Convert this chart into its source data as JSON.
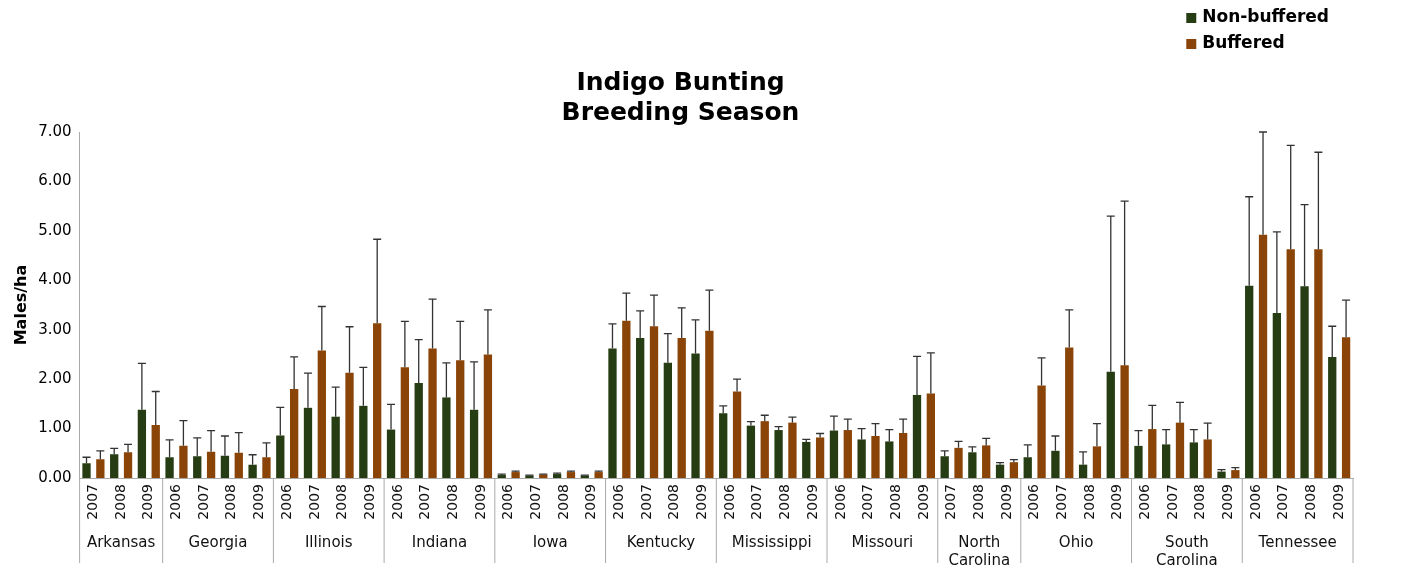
{
  "chart_data": {
    "type": "bar",
    "title": "Indigo Bunting Breeding Season",
    "ylabel": "Males/ha",
    "categories": [
      "2007",
      "2008",
      "2009",
      "2006",
      "2007",
      "2008",
      "2009",
      "2006",
      "2007",
      "2008",
      "2009",
      "2006",
      "2007",
      "2008",
      "2009",
      "2006",
      "2007",
      "2008",
      "2009",
      "2006",
      "2007",
      "2008",
      "2009",
      "2006",
      "2007",
      "2008",
      "2009",
      "2006",
      "2007",
      "2008",
      "2009",
      "2007",
      "2008",
      "2009",
      "2006",
      "2007",
      "2008",
      "2009",
      "2006",
      "2007",
      "2008",
      "2009",
      "2006",
      "2007",
      "2008",
      "2009"
    ],
    "annotations": [
      "Arkansas",
      "Georgia",
      "Illinois",
      "Indiana",
      "Iowa",
      "Kentucky",
      "Mississippi",
      "Missouri",
      "North Carolina",
      "Ohio",
      "South Carolina",
      "Tennessee"
    ],
    "series": [
      {
        "name": "Non-buffered",
        "color": "#263d13",
        "values": [
          0.3,
          0.48,
          1.38,
          0.42,
          0.44,
          0.45,
          0.27,
          0.86,
          1.42,
          1.24,
          1.46,
          0.98,
          1.92,
          1.63,
          1.38,
          0.06,
          0.05,
          0.08,
          0.05,
          2.62,
          2.83,
          2.33,
          2.52,
          1.31,
          1.06,
          0.97,
          0.73,
          0.96,
          0.78,
          0.74,
          1.68,
          0.44,
          0.52,
          0.27,
          0.42,
          0.55,
          0.27,
          2.15,
          0.65,
          0.68,
          0.72,
          0.13,
          3.89,
          3.34,
          3.88,
          2.45
        ],
        "errors": [
          [
            0.3,
            0.42
          ],
          [
            0.48,
            0.6
          ],
          [
            1.38,
            2.32
          ],
          [
            0.42,
            0.77
          ],
          [
            0.44,
            0.81
          ],
          [
            0.45,
            0.85
          ],
          [
            0.27,
            0.47
          ],
          [
            0.86,
            1.43
          ],
          [
            1.42,
            2.12
          ],
          [
            1.24,
            1.84
          ],
          [
            1.46,
            2.24
          ],
          [
            0.98,
            1.49
          ],
          [
            1.92,
            2.8
          ],
          [
            1.63,
            2.33
          ],
          [
            1.38,
            2.35
          ],
          [
            0.06,
            0.08
          ],
          [
            0.05,
            0.06
          ],
          [
            0.08,
            0.1
          ],
          [
            0.05,
            0.06
          ],
          [
            2.62,
            3.12
          ],
          [
            2.83,
            3.38
          ],
          [
            2.33,
            2.92
          ],
          [
            2.52,
            3.2
          ],
          [
            1.31,
            1.46
          ],
          [
            1.06,
            1.14
          ],
          [
            0.97,
            1.04
          ],
          [
            0.73,
            0.78
          ],
          [
            0.96,
            1.25
          ],
          [
            0.78,
            1.0
          ],
          [
            0.74,
            0.98
          ],
          [
            1.68,
            2.46
          ],
          [
            0.44,
            0.55
          ],
          [
            0.52,
            0.63
          ],
          [
            0.27,
            0.31
          ],
          [
            0.42,
            0.67
          ],
          [
            0.55,
            0.85
          ],
          [
            0.27,
            0.53
          ],
          [
            2.15,
            5.3
          ],
          [
            0.65,
            0.96
          ],
          [
            0.68,
            0.98
          ],
          [
            0.72,
            0.98
          ],
          [
            0.13,
            0.17
          ],
          [
            3.89,
            5.69
          ],
          [
            3.34,
            4.98
          ],
          [
            3.88,
            5.53
          ],
          [
            2.45,
            3.07
          ]
        ]
      },
      {
        "name": "Buffered",
        "color": "#8b4407",
        "values": [
          0.38,
          0.52,
          1.07,
          0.65,
          0.53,
          0.51,
          0.42,
          1.8,
          2.58,
          2.13,
          3.13,
          2.24,
          2.62,
          2.38,
          2.5,
          0.12,
          0.07,
          0.12,
          0.12,
          3.18,
          3.07,
          2.83,
          2.98,
          1.75,
          1.15,
          1.12,
          0.82,
          0.97,
          0.85,
          0.91,
          1.71,
          0.61,
          0.66,
          0.32,
          1.87,
          2.64,
          0.64,
          2.28,
          0.99,
          1.12,
          0.78,
          0.16,
          4.92,
          4.63,
          4.63,
          2.85
        ],
        "errors": [
          [
            0.38,
            0.55
          ],
          [
            0.52,
            0.68
          ],
          [
            1.07,
            1.75
          ],
          [
            0.65,
            1.16
          ],
          [
            0.53,
            0.96
          ],
          [
            0.51,
            0.92
          ],
          [
            0.42,
            0.71
          ],
          [
            1.8,
            2.45
          ],
          [
            2.58,
            3.47
          ],
          [
            2.13,
            3.06
          ],
          [
            3.13,
            4.83
          ],
          [
            2.24,
            3.17
          ],
          [
            2.62,
            3.62
          ],
          [
            2.38,
            3.17
          ],
          [
            2.5,
            3.4
          ],
          [
            0.12,
            0.14
          ],
          [
            0.07,
            0.08
          ],
          [
            0.12,
            0.14
          ],
          [
            0.12,
            0.14
          ],
          [
            3.18,
            3.74
          ],
          [
            3.07,
            3.7
          ],
          [
            2.83,
            3.44
          ],
          [
            2.98,
            3.8
          ],
          [
            1.75,
            2.0
          ],
          [
            1.15,
            1.27
          ],
          [
            1.12,
            1.23
          ],
          [
            0.82,
            0.9
          ],
          [
            0.97,
            1.19
          ],
          [
            0.85,
            1.1
          ],
          [
            0.91,
            1.19
          ],
          [
            1.71,
            2.53
          ],
          [
            0.61,
            0.74
          ],
          [
            0.66,
            0.8
          ],
          [
            0.32,
            0.37
          ],
          [
            1.87,
            2.43
          ],
          [
            2.64,
            3.4
          ],
          [
            0.64,
            1.1
          ],
          [
            2.28,
            5.6
          ],
          [
            0.99,
            1.47
          ],
          [
            1.12,
            1.53
          ],
          [
            0.78,
            1.11
          ],
          [
            0.16,
            0.21
          ],
          [
            4.92,
            7.0
          ],
          [
            4.63,
            6.73
          ],
          [
            4.63,
            6.59
          ],
          [
            2.85,
            3.6
          ]
        ]
      }
    ],
    "ylim": [
      0,
      7
    ],
    "yticks": [
      {
        "value": 0,
        "label": "0.00"
      },
      {
        "value": 1,
        "label": "1.00"
      },
      {
        "value": 2,
        "label": "2.00"
      },
      {
        "value": 3,
        "label": "3.00"
      },
      {
        "value": 4,
        "label": "4.00"
      },
      {
        "value": 5,
        "label": "5.00"
      },
      {
        "value": 6,
        "label": "6.00"
      },
      {
        "value": 7,
        "label": "7.00"
      }
    ],
    "grid": false,
    "legend": "top right"
  }
}
